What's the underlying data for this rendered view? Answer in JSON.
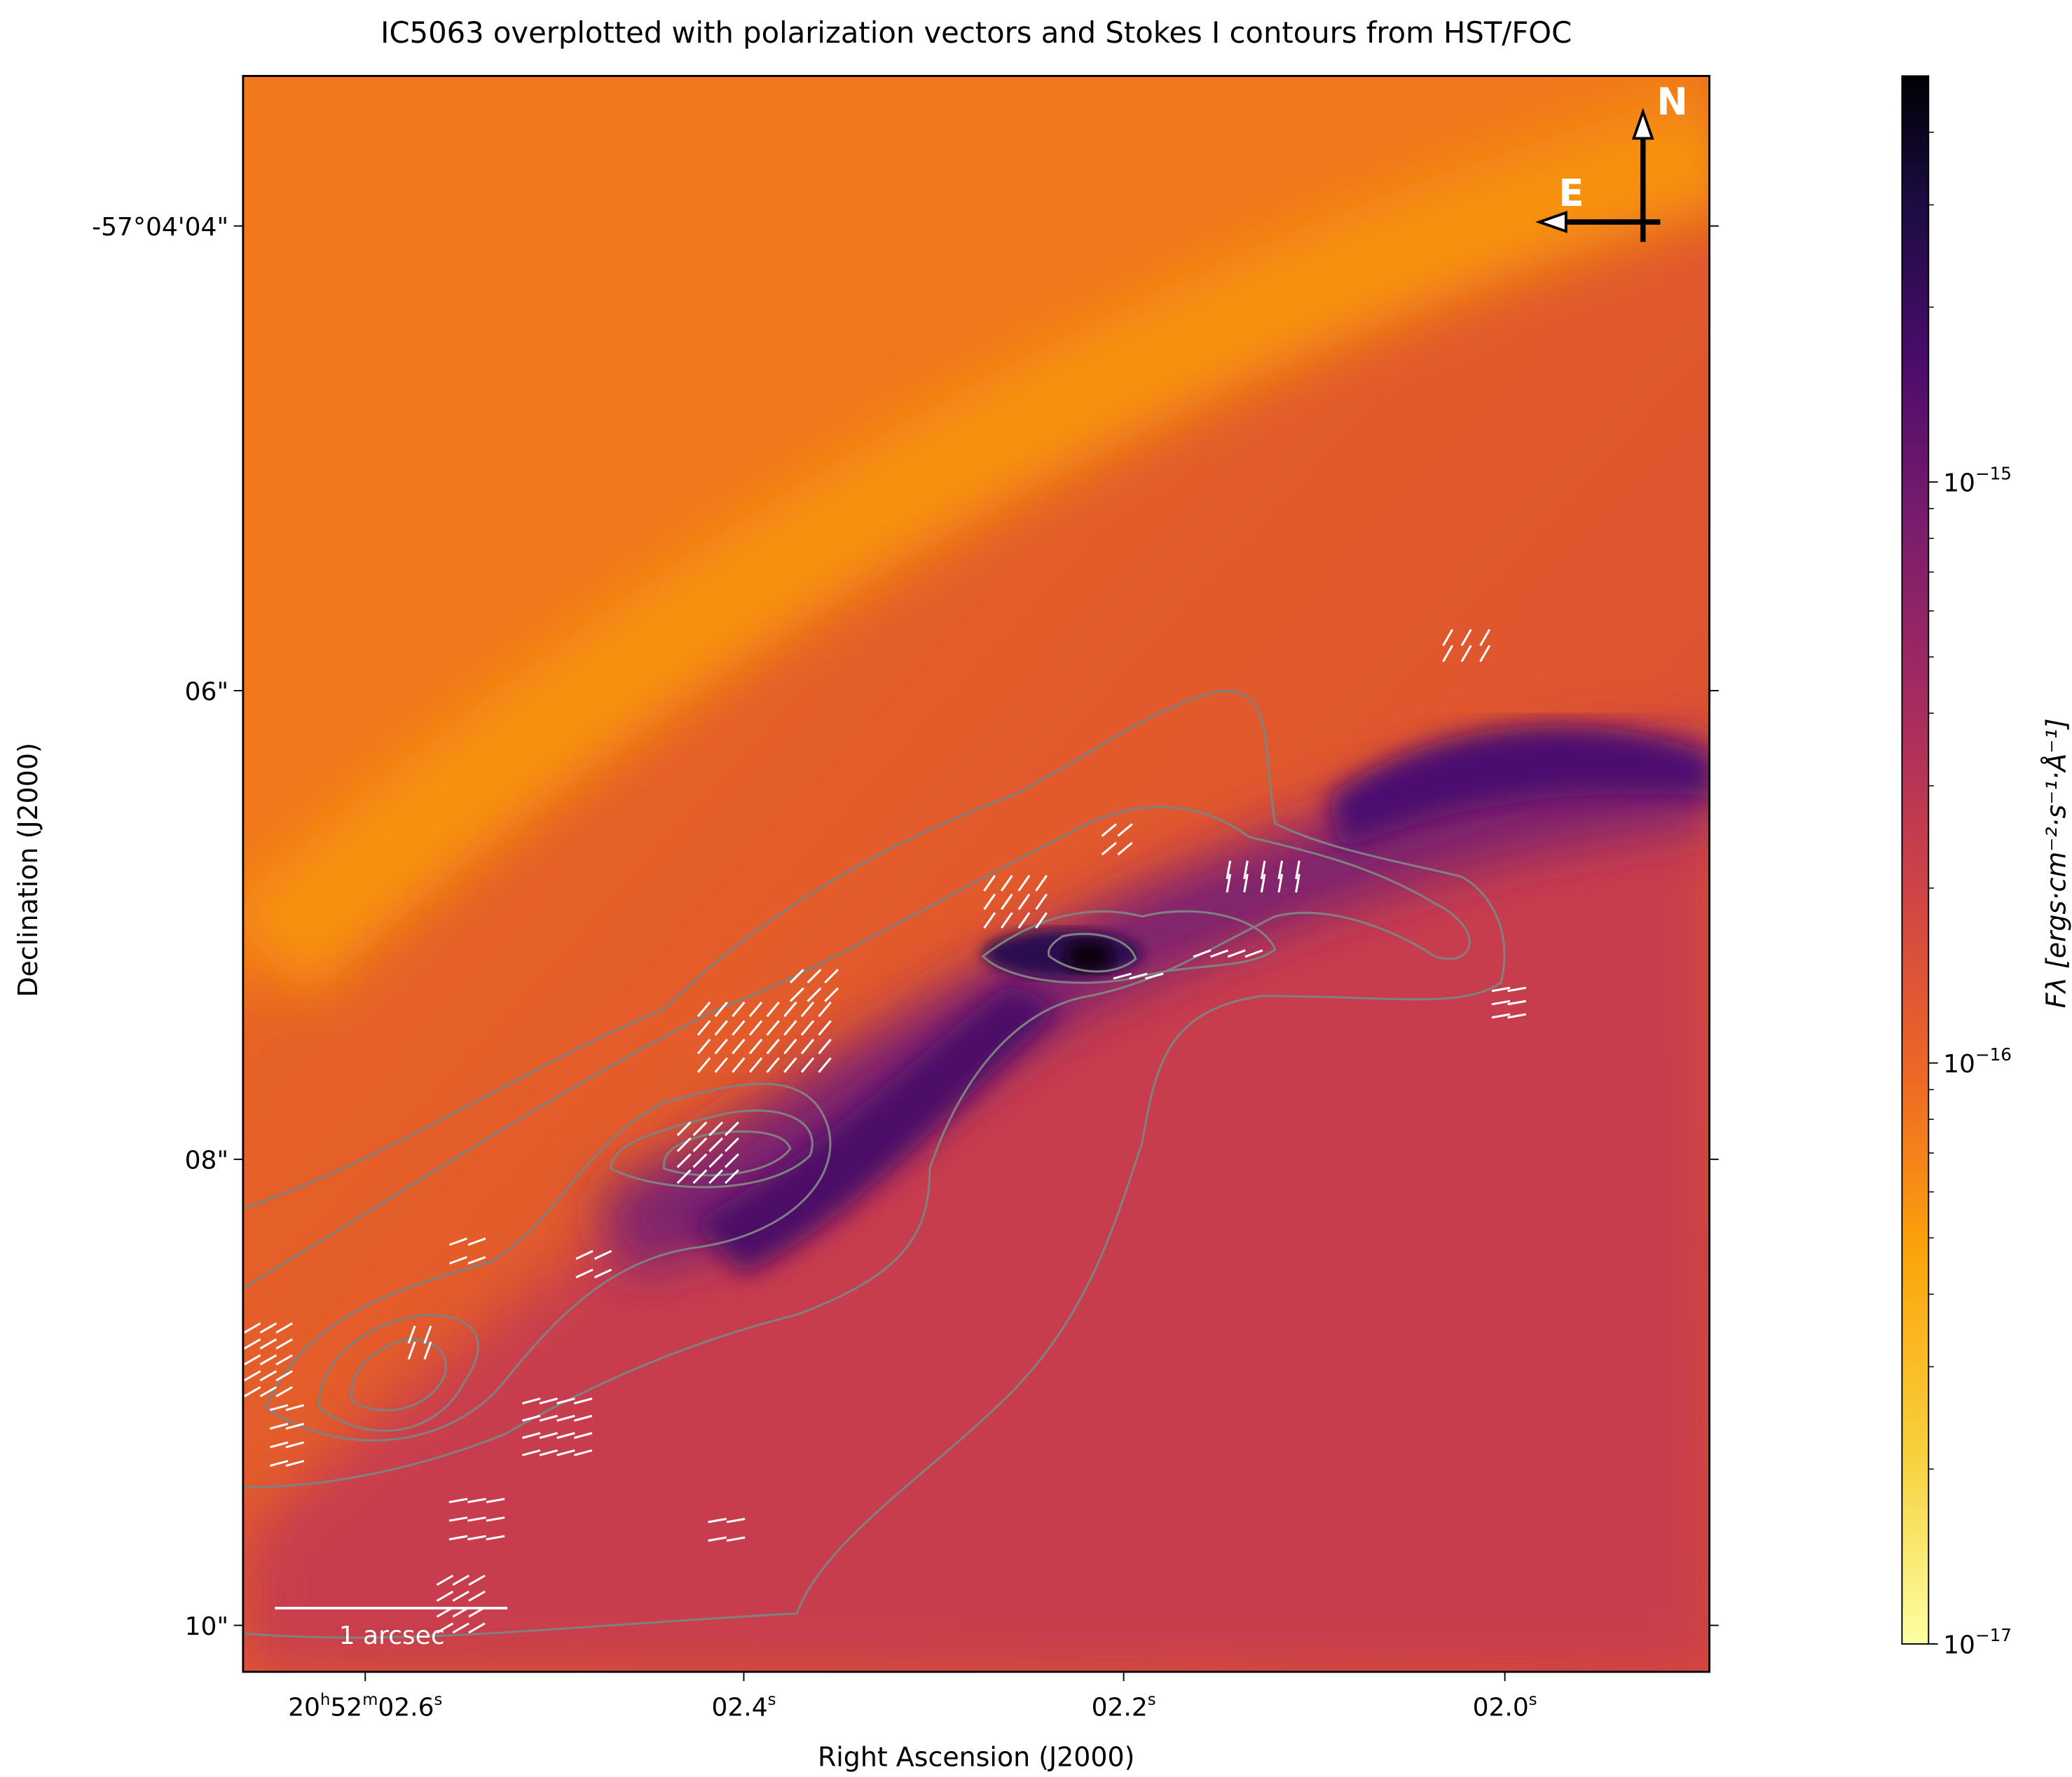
{
  "chart_data": {
    "type": "heatmap",
    "title": "IC5063 overplotted with polarization vectors and Stokes I contours from HST/FOC",
    "xlabel": "Right Ascension (J2000)",
    "ylabel": "Declination (J2000)",
    "x_ticks": [
      "20h52m02.6s",
      "02.4s",
      "02.2s",
      "02.0s"
    ],
    "x_tick_parts": [
      {
        "main": "20",
        "sup1": "h",
        "mid": "52",
        "sup2": "m",
        "end": "02.6",
        "sup3": "s"
      },
      {
        "end": "02.4",
        "sup3": "s"
      },
      {
        "end": "02.2",
        "sup3": "s"
      },
      {
        "end": "02.0",
        "sup3": "s"
      }
    ],
    "y_ticks": [
      "-57°04'04\"",
      "06\"",
      "08\"",
      "10\""
    ],
    "colorbar": {
      "label": "Fλ [ergs·cm⁻²·s⁻¹·Å⁻¹]",
      "scale": "log",
      "colormap": "inferno_r",
      "range": [
        1e-17,
        5e-15
      ],
      "ticks": [
        {
          "value": 1e-17,
          "base": "10",
          "exp": "−17"
        },
        {
          "value": 1e-16,
          "base": "10",
          "exp": "−16"
        },
        {
          "value": 1e-15,
          "base": "10",
          "exp": "−15"
        }
      ]
    },
    "contour_color": "#808080",
    "vector_color": "#ffffff",
    "compass": {
      "north": "N",
      "east": "E"
    },
    "scale_bar": "1 arcsec"
  }
}
